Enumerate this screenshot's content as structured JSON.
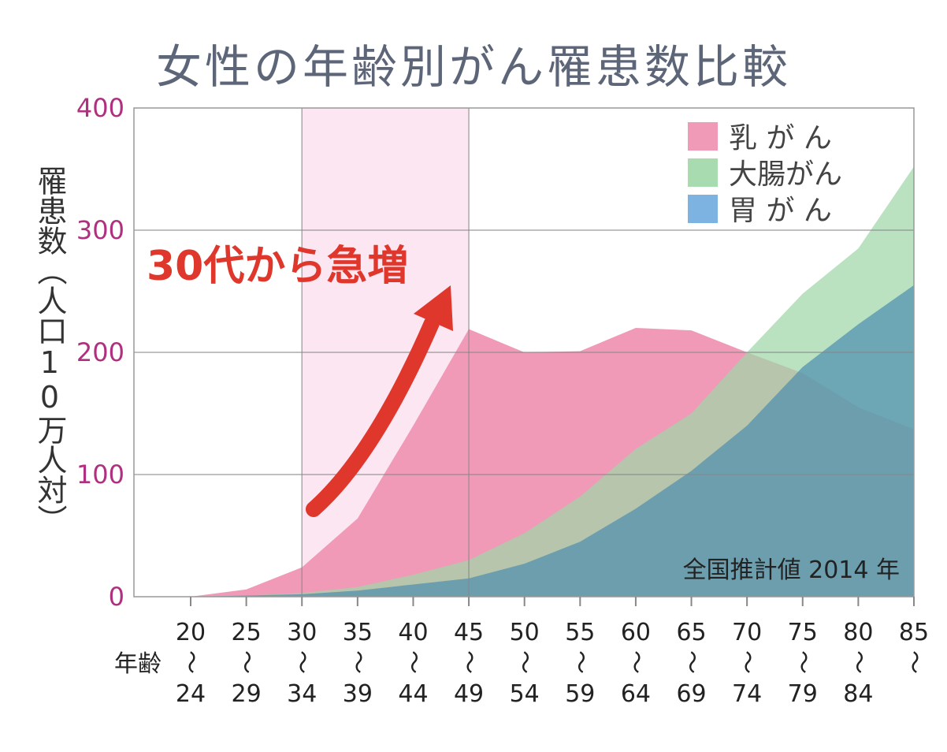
{
  "chart_data": {
    "type": "area",
    "title": "女性の年齢別がん罹患数比較",
    "ylabel": "罹患数（人口10万人対）",
    "xlabel": "年齢",
    "ylim": [
      0,
      400
    ],
    "yticks": [
      0,
      100,
      200,
      300,
      400
    ],
    "grid": true,
    "legend_placement": "top-right",
    "categories": [
      {
        "from": "20",
        "to": "24"
      },
      {
        "from": "25",
        "to": "29"
      },
      {
        "from": "30",
        "to": "34"
      },
      {
        "from": "35",
        "to": "39"
      },
      {
        "from": "40",
        "to": "44"
      },
      {
        "from": "45",
        "to": "49"
      },
      {
        "from": "50",
        "to": "54"
      },
      {
        "from": "55",
        "to": "59"
      },
      {
        "from": "60",
        "to": "64"
      },
      {
        "from": "65",
        "to": "69"
      },
      {
        "from": "70",
        "to": "74"
      },
      {
        "from": "75",
        "to": "79"
      },
      {
        "from": "80",
        "to": "84"
      },
      {
        "from": "85",
        "to": ""
      }
    ],
    "range_mark": "〜",
    "series": [
      {
        "name": "乳 が ん",
        "color": "#f09ab8",
        "values": [
          0,
          6,
          24,
          64,
          140,
          219,
          200,
          201,
          220,
          218,
          200,
          183,
          155,
          137
        ]
      },
      {
        "name": "大腸がん",
        "color": "#a8dbb0",
        "values": [
          0,
          1,
          3,
          8,
          18,
          30,
          52,
          82,
          121,
          150,
          200,
          248,
          285,
          352
        ]
      },
      {
        "name": "胃 が ん",
        "color": "#7cb3e0",
        "values": [
          0,
          1,
          2,
          5,
          10,
          15,
          27,
          45,
          72,
          103,
          140,
          188,
          223,
          255
        ]
      }
    ],
    "highlight_range": [
      "30",
      "45"
    ],
    "highlight_color": "#fbe6f1",
    "annotation": "30代から急増",
    "annotation_color": "#e0372c",
    "note": "全国推計値 2014 年"
  }
}
